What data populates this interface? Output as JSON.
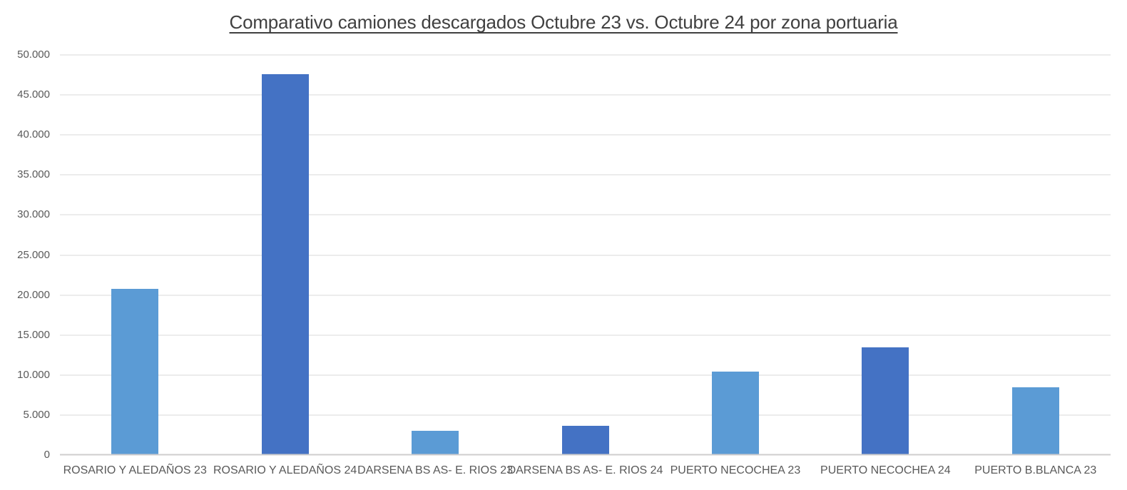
{
  "chart_data": {
    "type": "bar",
    "title": "Comparativo camiones descargados Octubre 23 vs. Octubre 24 por zona portuaria",
    "categories": [
      "ROSARIO Y ALEDAÑOS 23",
      "ROSARIO Y ALEDAÑOS 24",
      "DARSENA BS AS- E. RIOS 23",
      "DARSENA BS AS- E. RIOS 24",
      "PUERTO NECOCHEA 23",
      "PUERTO NECOCHEA 24",
      "PUERTO B.BLANCA 23"
    ],
    "values": [
      20800,
      47600,
      3000,
      3700,
      10400,
      13500,
      8500
    ],
    "bar_colors": [
      "#5B9BD5",
      "#4472C4",
      "#5B9BD5",
      "#4472C4",
      "#5B9BD5",
      "#4472C4",
      "#5B9BD5"
    ],
    "xlabel": "",
    "ylabel": "",
    "ylim": [
      0,
      50000
    ],
    "ytick_step": 5000,
    "ytick_labels": [
      "0",
      "5.000",
      "10.000",
      "15.000",
      "20.000",
      "25.000",
      "30.000",
      "35.000",
      "40.000",
      "45.000",
      "50.000"
    ],
    "grid": "horizontal",
    "legend_position": "none"
  },
  "colors": {
    "bar_light": "#5B9BD5",
    "bar_dark": "#4472C4",
    "gridline": "#D9D9D9",
    "axis_line": "#CFCDCD",
    "tick_text": "#595959",
    "title_text": "#404040",
    "background": "#FFFFFF"
  }
}
